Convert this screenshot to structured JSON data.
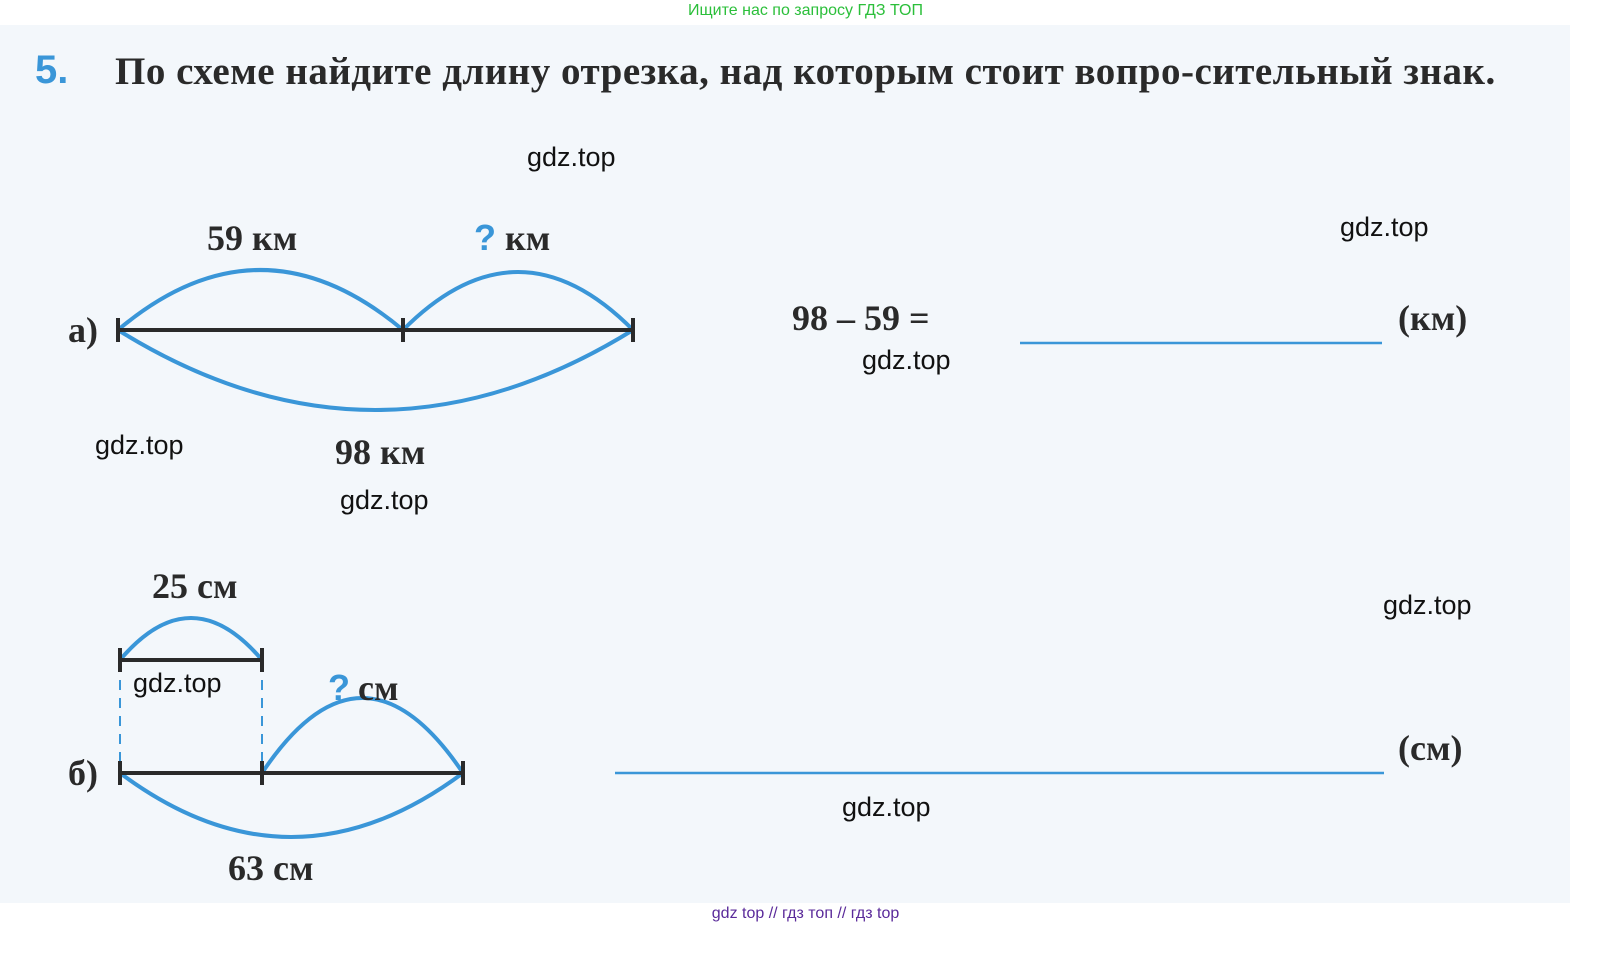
{
  "banner": "Ищите нас по запросу ГДЗ ТОП",
  "task": {
    "number": "5.",
    "text": "По схеме найдите длину отрезка, над которым стоит вопро-сительный знак."
  },
  "part_a": {
    "label": "а)",
    "top_left": "59 км",
    "top_right_q": "?",
    "top_right_unit": "км",
    "bottom": "98 км",
    "equation": "98 – 59 =",
    "unit": "(км)"
  },
  "part_b": {
    "label": "б)",
    "top": "25 см",
    "q": "?",
    "q_unit": "см",
    "bottom": "63 см",
    "unit": "(см)"
  },
  "watermarks": [
    "gdz.top",
    "gdz.top",
    "gdz.top",
    "gdz.top",
    "gdz.top",
    "gdz.top",
    "gdz.top",
    "gdz.top"
  ],
  "footer": "gdz top  //  гдз топ  //  гдз top",
  "colors": {
    "accent": "#3a96d8",
    "banner": "#2bbf3a",
    "footer": "#5a2a9a"
  }
}
